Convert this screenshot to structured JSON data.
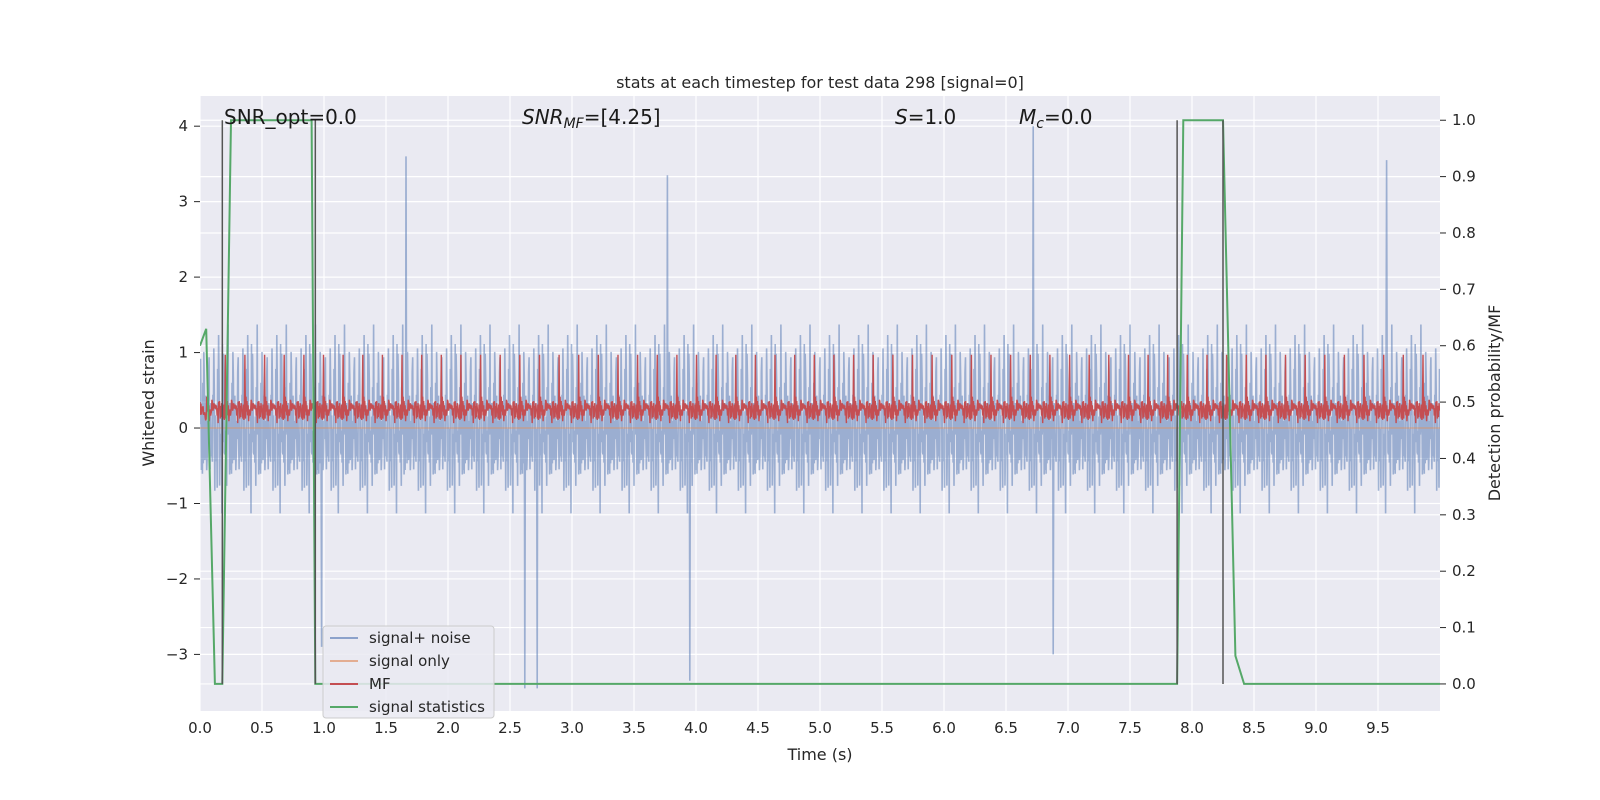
{
  "chart_data": {
    "type": "line",
    "title": "stats at each timestep for test data 298 [signal=0]",
    "xlabel": "Time (s)",
    "ylabel": "Whitened strain",
    "y2label": "Detection probability/MF",
    "xlim": [
      0.0,
      10.0
    ],
    "ylim": [
      -3.75,
      4.4
    ],
    "y2lim": [
      -0.048,
      1.043
    ],
    "xticks": [
      0.0,
      0.5,
      1.0,
      1.5,
      2.0,
      2.5,
      3.0,
      3.5,
      4.0,
      4.5,
      5.0,
      5.5,
      6.0,
      6.5,
      7.0,
      7.5,
      8.0,
      8.5,
      9.0,
      9.5
    ],
    "xtick_labels": [
      "0.0",
      "0.5",
      "1.0",
      "1.5",
      "2.0",
      "2.5",
      "3.0",
      "3.5",
      "4.0",
      "4.5",
      "5.0",
      "5.5",
      "6.0",
      "6.5",
      "7.0",
      "7.5",
      "8.0",
      "8.5",
      "9.0",
      "9.5"
    ],
    "yticks": [
      -3,
      -2,
      -1,
      0,
      1,
      2,
      3,
      4
    ],
    "ytick_labels": [
      "−3",
      "−2",
      "−1",
      "0",
      "1",
      "2",
      "3",
      "4"
    ],
    "y2ticks": [
      0.0,
      0.1,
      0.2,
      0.3,
      0.4,
      0.5,
      0.6,
      0.7,
      0.8,
      0.9,
      1.0
    ],
    "y2tick_labels": [
      "0.0",
      "0.1",
      "0.2",
      "0.3",
      "0.4",
      "0.5",
      "0.6",
      "0.7",
      "0.8",
      "0.9",
      "1.0"
    ],
    "grid": true,
    "legend_position": "lower-left",
    "annotations": {
      "snr_opt": "SNR_opt=0.0",
      "snr_mf_var": "SNR",
      "snr_mf_sub": "MF",
      "snr_mf_val": "=[4.25]",
      "s_var": "S",
      "s_val": "=1.0",
      "mc_var": "M",
      "mc_sub": "c",
      "mc_val": "=0.0"
    },
    "vertical_markers": [
      0.18,
      0.93,
      7.88,
      8.25
    ],
    "series": [
      {
        "name": "signal+ noise",
        "color": "#4c72b0",
        "opacity": 0.5,
        "axis": "left",
        "envelope": {
          "typical_low": -1.2,
          "typical_high": 1.6,
          "peak_low": -3.45,
          "peak_high": 4.0
        },
        "peaks": [
          {
            "x": 1.66,
            "y": 3.6
          },
          {
            "x": 3.77,
            "y": 3.35
          },
          {
            "x": 6.72,
            "y": 4.0
          },
          {
            "x": 9.57,
            "y": 3.55
          },
          {
            "x": 2.62,
            "y": -3.45
          },
          {
            "x": 2.72,
            "y": -3.45
          },
          {
            "x": 3.95,
            "y": -3.35
          },
          {
            "x": 6.88,
            "y": -3.0
          },
          {
            "x": 0.98,
            "y": -2.9
          }
        ]
      },
      {
        "name": "signal only",
        "color": "#dd8452",
        "opacity": 0.5,
        "axis": "left",
        "constant": 0.0
      },
      {
        "name": "MF",
        "color": "#c44e52",
        "axis": "right",
        "baseline": 0.5,
        "envelope": {
          "low": 0.46,
          "high": 0.58,
          "peak_high": 0.6
        }
      },
      {
        "name": "signal statistics",
        "color": "#55a868",
        "axis": "right",
        "x": [
          0.0,
          0.05,
          0.12,
          0.18,
          0.25,
          0.9,
          0.93,
          7.88,
          7.93,
          8.25,
          8.35,
          8.42,
          10.0
        ],
        "y": [
          0.6,
          0.63,
          0.0,
          0.0,
          1.0,
          1.0,
          0.0,
          0.0,
          1.0,
          1.0,
          0.05,
          0.0,
          0.0
        ]
      }
    ]
  }
}
